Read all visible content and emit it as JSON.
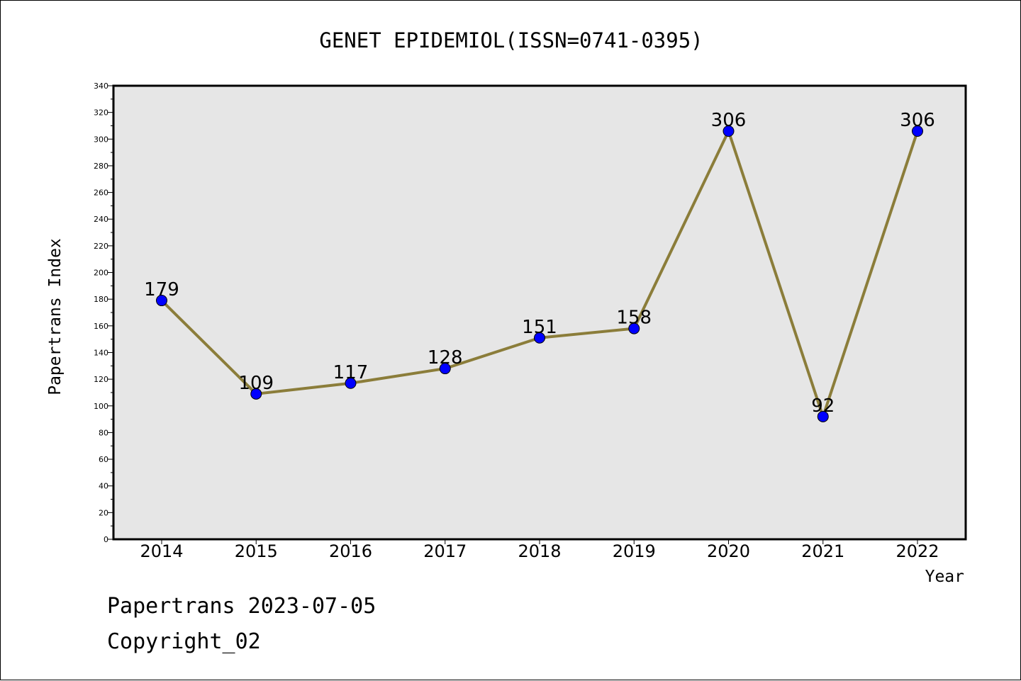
{
  "chart_data": {
    "type": "line",
    "title": "GENET EPIDEMIOL(ISSN=0741-0395)",
    "xlabel": "Year",
    "ylabel": "Papertrans Index",
    "categories": [
      "2014",
      "2015",
      "2016",
      "2017",
      "2018",
      "2019",
      "2020",
      "2021",
      "2022"
    ],
    "values": [
      179,
      109,
      117,
      128,
      151,
      158,
      306,
      92,
      306
    ],
    "data_labels": [
      "179",
      "109",
      "117",
      "128",
      "151",
      "158",
      "306",
      "92",
      "306"
    ],
    "ylim": [
      0,
      340
    ],
    "y_ticks": [
      "0",
      "20",
      "40",
      "60",
      "80",
      "100",
      "120",
      "140",
      "160",
      "180",
      "200",
      "220",
      "240",
      "260",
      "280",
      "300",
      "320",
      "340"
    ],
    "grid": false,
    "legend": "none",
    "colors": {
      "plot_background": "#e6e6e6",
      "line": "#8b7d3a",
      "marker": "#0000ff",
      "axis": "#000000"
    }
  },
  "footer": {
    "line1": "Papertrans 2023-07-05",
    "line2": "Copyright_02"
  }
}
